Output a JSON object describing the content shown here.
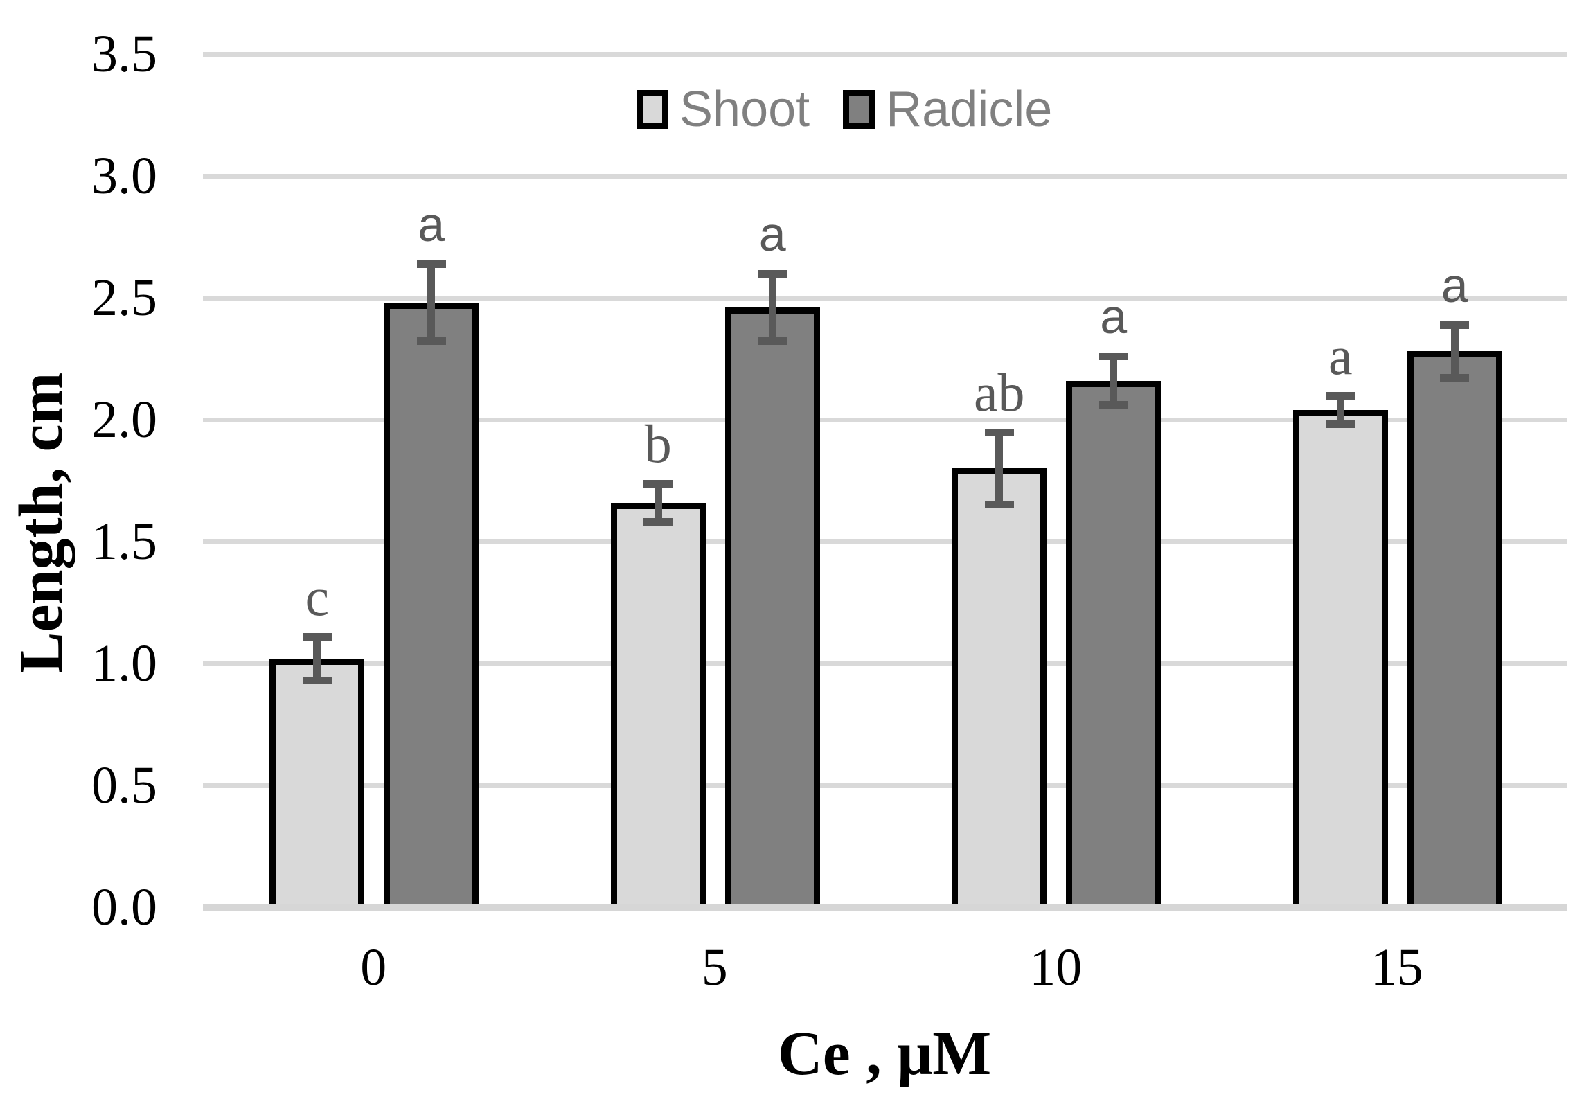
{
  "chart_data": {
    "type": "bar",
    "title": "",
    "xlabel": "Ce , μM",
    "ylabel": "Length, cm",
    "categories": [
      "0",
      "5",
      "10",
      "15"
    ],
    "y_ticks": [
      "0.0",
      "0.5",
      "1.0",
      "1.5",
      "2.0",
      "2.5",
      "3.0",
      "3.5"
    ],
    "ylim": [
      0.0,
      3.5
    ],
    "gridline_step": 0.5,
    "grid": "on",
    "legend_position": "top-center",
    "series": [
      {
        "name": "Shoot",
        "color": "#d9d9d9",
        "values": [
          1.02,
          1.66,
          1.8,
          2.04
        ],
        "errors": [
          0.09,
          0.08,
          0.15,
          0.06
        ],
        "letters": [
          "c",
          "b",
          "ab",
          "a"
        ],
        "letter_font": "serif"
      },
      {
        "name": "Radicle",
        "color": "#808080",
        "values": [
          2.48,
          2.46,
          2.16,
          2.28
        ],
        "errors": [
          0.16,
          0.14,
          0.1,
          0.11
        ],
        "letters": [
          "a",
          "a",
          "a",
          "a"
        ],
        "letter_font": "sans"
      }
    ],
    "colors": {
      "bar_border": "#000000",
      "error_bar": "#595959",
      "sig_letter": "#595959",
      "gridline": "#d9d9d9",
      "baseline": "#d6d6d6",
      "axis_text": "#000000",
      "legend_text": "#808080"
    }
  }
}
